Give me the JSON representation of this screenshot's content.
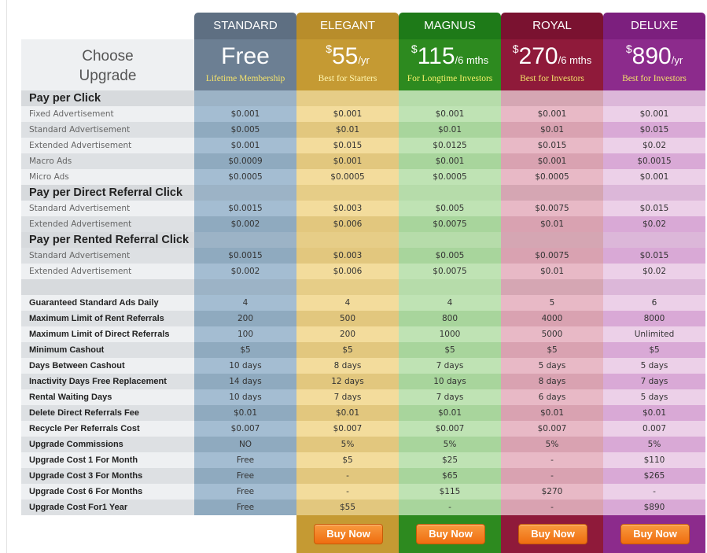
{
  "header": {
    "choose_line1": "Choose",
    "choose_line2": "Upgrade"
  },
  "plans": [
    {
      "name": "STANDARD",
      "cur": "",
      "amount": "Free",
      "per": "",
      "tagline": "Lifetime Membership",
      "head_color": "#5e6f82",
      "price_bg": "#6c7f93",
      "tag_color": "#f5e36a",
      "col_a": "#a4bdd2",
      "col_b": "#8faabf",
      "section_bg": "#9cb3c6"
    },
    {
      "name": "ELEGANT",
      "cur": "$",
      "amount": "55",
      "per": "/yr",
      "tagline": "Best for Starters",
      "head_color": "#b88d2b",
      "price_bg": "#c59a33",
      "tag_color": "#fff6b0",
      "col_a": "#f3dc9c",
      "col_b": "#e2c77e",
      "section_bg": "#e6cd87"
    },
    {
      "name": "MAGNUS",
      "cur": "$",
      "amount": "115",
      "per": "/6 mths",
      "tagline": "For Longtime Investors",
      "head_color": "#1e7a18",
      "price_bg": "#2d8a1f",
      "tag_color": "#f5f06a",
      "col_a": "#bfe3b4",
      "col_b": "#a8d59c",
      "section_bg": "#b6dcaa"
    },
    {
      "name": "ROYAL",
      "cur": "$",
      "amount": "270",
      "per": "/6 mths",
      "tagline": "Best for Investors",
      "head_color": "#7a1230",
      "price_bg": "#8f1a3a",
      "tag_color": "#f3e36a",
      "col_a": "#e8b9c6",
      "col_b": "#d9a2b1",
      "section_bg": "#d5a6b3"
    },
    {
      "name": "DELUXE",
      "cur": "$",
      "amount": "890",
      "per": "/yr",
      "tagline": "Best for Investors",
      "head_color": "#7c1f7e",
      "price_bg": "#8c2b8c",
      "tag_color": "#f3e36a",
      "col_a": "#ecd0e8",
      "col_b": "#d9a9d6",
      "section_bg": "#dcb7d9"
    }
  ],
  "rows": [
    {
      "type": "section",
      "label": "Pay per Click",
      "values": [
        "",
        "",
        "",
        "",
        ""
      ]
    },
    {
      "type": "normal",
      "label": "Fixed Advertisement",
      "values": [
        "$0.001",
        "$0.001",
        "$0.001",
        "$0.001",
        "$0.001"
      ]
    },
    {
      "type": "normal",
      "label": "Standard Advertisement",
      "values": [
        "$0.005",
        "$0.01",
        "$0.01",
        "$0.01",
        "$0.015"
      ]
    },
    {
      "type": "normal",
      "label": "Extended Advertisement",
      "values": [
        "$0.001",
        "$0.015",
        "$0.0125",
        "$0.015",
        "$0.02"
      ]
    },
    {
      "type": "normal",
      "label": "Macro Ads",
      "values": [
        "$0.0009",
        "$0.001",
        "$0.001",
        "$0.001",
        "$0.0015"
      ]
    },
    {
      "type": "normal",
      "label": "Micro Ads",
      "values": [
        "$0.0005",
        "$0.0005",
        "$0.0005",
        "$0.0005",
        "$0.001"
      ]
    },
    {
      "type": "section",
      "label": "Pay per Direct Referral Click",
      "values": [
        "",
        "",
        "",
        "",
        ""
      ]
    },
    {
      "type": "normal",
      "label": "Standard Advertisement",
      "values": [
        "$0.0015",
        "$0.003",
        "$0.005",
        "$0.0075",
        "$0.015"
      ]
    },
    {
      "type": "normal",
      "label": "Extended Advertisement",
      "values": [
        "$0.002",
        "$0.006",
        "$0.0075",
        "$0.01",
        "$0.02"
      ]
    },
    {
      "type": "section",
      "label": "Pay per Rented Referral Click",
      "values": [
        "",
        "",
        "",
        "",
        ""
      ]
    },
    {
      "type": "normal",
      "label": "Standard Advertisement",
      "values": [
        "$0.0015",
        "$0.003",
        "$0.005",
        "$0.0075",
        "$0.015"
      ]
    },
    {
      "type": "normal",
      "label": "Extended Advertisement",
      "values": [
        "$0.002",
        "$0.006",
        "$0.0075",
        "$0.01",
        "$0.02"
      ]
    },
    {
      "type": "spacer",
      "label": "",
      "values": [
        "",
        "",
        "",
        "",
        ""
      ]
    },
    {
      "type": "bold",
      "label": "Guaranteed Standard Ads Daily",
      "values": [
        "4",
        "4",
        "4",
        "5",
        "6"
      ]
    },
    {
      "type": "bold",
      "label": "Maximum Limit of Rent Referrals",
      "values": [
        "200",
        "500",
        "800",
        "4000",
        "8000"
      ]
    },
    {
      "type": "bold",
      "label": "Maximum Limit of Direct Referrals",
      "values": [
        "100",
        "200",
        "1000",
        "5000",
        "Unlimited"
      ]
    },
    {
      "type": "bold",
      "label": "Minimum Cashout",
      "values": [
        "$5",
        "$5",
        "$5",
        "$5",
        "$5"
      ]
    },
    {
      "type": "bold",
      "label": "Days Between Cashout",
      "values": [
        "10 days",
        "8 days",
        "7 days",
        "5 days",
        "5 days"
      ]
    },
    {
      "type": "bold",
      "label": "Inactivity Days Free Replacement",
      "values": [
        "14 days",
        "12 days",
        "10 days",
        "8 days",
        "7 days"
      ]
    },
    {
      "type": "bold",
      "label": "Rental Waiting Days",
      "values": [
        "10 days",
        "7 days",
        "7 days",
        "6 days",
        "5 days"
      ]
    },
    {
      "type": "bold",
      "label": "Delete Direct Referrals Fee",
      "values": [
        "$0.01",
        "$0.01",
        "$0.01",
        "$0.01",
        "$0.01"
      ]
    },
    {
      "type": "bold",
      "label": "Recycle Per Referrals Cost",
      "values": [
        "$0.007",
        "$0.007",
        "$0.007",
        "$0.007",
        "0.007"
      ]
    },
    {
      "type": "bold",
      "label": "Upgrade Commissions",
      "values": [
        "NO",
        "5%",
        "5%",
        "5%",
        "5%"
      ]
    },
    {
      "type": "bold",
      "label": "Upgrade Cost 1 For Month",
      "values": [
        "Free",
        "$5",
        "$25",
        "-",
        "$110"
      ]
    },
    {
      "type": "bold",
      "label": "Upgrade Cost 3 For Months",
      "values": [
        "Free",
        "-",
        "$65",
        "-",
        "$265"
      ]
    },
    {
      "type": "bold",
      "label": "Upgrade Cost 6 For Months",
      "values": [
        "Free",
        "-",
        "$115",
        "$270",
        "-"
      ]
    },
    {
      "type": "bold",
      "label": "Upgrade Cost For1 Year",
      "values": [
        "Free",
        "$55",
        "-",
        "-",
        "$890"
      ]
    }
  ],
  "footer": {
    "buy_label": "Buy Now"
  }
}
